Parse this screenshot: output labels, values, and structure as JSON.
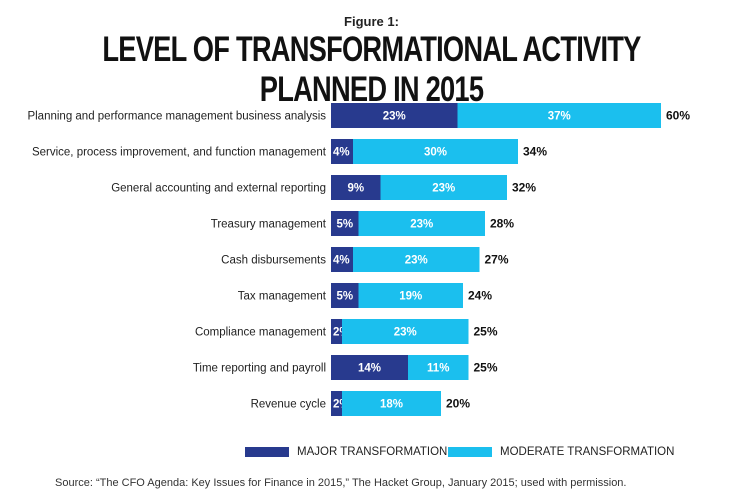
{
  "figure_label": "Figure 1:",
  "chart_data": {
    "type": "bar",
    "orientation": "horizontal",
    "stacked": true,
    "title": "LEVEL OF TRANSFORMATIONAL ACTIVITY PLANNED IN 2015",
    "categories": [
      "Planning and performance management business analysis",
      "Service, process improvement, and function management",
      "General accounting and external reporting",
      "Treasury management",
      "Cash disbursements",
      "Tax management",
      "Compliance management",
      "Time reporting and payroll",
      "Revenue cycle"
    ],
    "series": [
      {
        "name": "MAJOR TRANSFORMATION",
        "values": [
          23,
          4,
          9,
          5,
          4,
          5,
          2,
          14,
          2
        ],
        "color": "#283a8e"
      },
      {
        "name": "MODERATE TRANSFORMATION",
        "values": [
          37,
          30,
          23,
          23,
          23,
          19,
          23,
          11,
          18
        ],
        "color": "#1bbfee"
      }
    ],
    "totals": [
      60,
      34,
      32,
      28,
      27,
      24,
      25,
      25,
      20
    ],
    "value_suffix": "%",
    "grid": false,
    "legend_position": "bottom"
  },
  "source": "Source: “The CFO Agenda: Key Issues for Finance in 2015,” The Hacket Group, January 2015; used with permission."
}
